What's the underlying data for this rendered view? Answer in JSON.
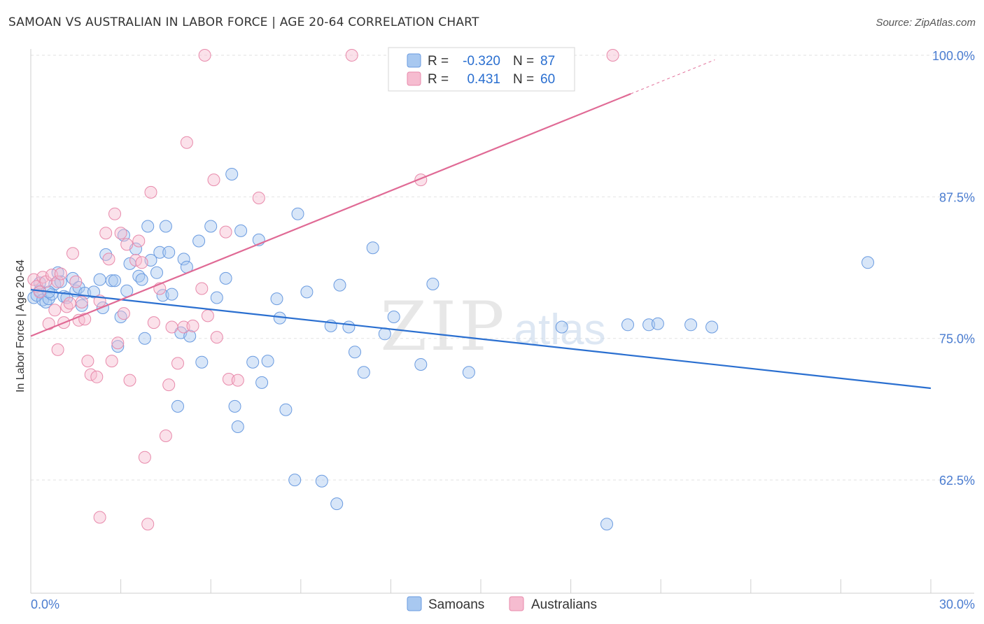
{
  "header": {
    "title": "SAMOAN VS AUSTRALIAN IN LABOR FORCE | AGE 20-64 CORRELATION CHART",
    "source": "Source: ZipAtlas.com"
  },
  "watermark": {
    "zip": "ZIP",
    "atlas": "atlas"
  },
  "colors": {
    "blue_fill": "#a8c8f0",
    "blue_stroke": "#6a9be0",
    "blue_line": "#2a6fd0",
    "pink_fill": "#f6bcd0",
    "pink_stroke": "#e88aab",
    "pink_line": "#e06a95",
    "tick_label_blue": "#4a7cd0",
    "grid": "#e2e2e2"
  },
  "legend_top": {
    "rows": [
      {
        "r_label": "R =",
        "r_value": "-0.320",
        "n_label": "N =",
        "n_value": "87"
      },
      {
        "r_label": "R =",
        "r_value": "0.431",
        "n_label": "N =",
        "n_value": "60"
      }
    ]
  },
  "legend_bottom": {
    "items": [
      "Samoans",
      "Australians"
    ]
  },
  "chart_data": {
    "type": "scatter",
    "title": "SAMOAN VS AUSTRALIAN IN LABOR FORCE | AGE 20-64 CORRELATION CHART",
    "xlabel": "",
    "ylabel": "In Labor Force | Age 20-64",
    "xlim": [
      0,
      30
    ],
    "ylim": [
      52.5,
      100.5
    ],
    "x_tick_labels": [
      "0.0%",
      "30.0%"
    ],
    "y_ticks": [
      62.5,
      75.0,
      87.5,
      100.0
    ],
    "y_tick_labels": [
      "62.5%",
      "75.0%",
      "87.5%",
      "100.0%"
    ],
    "grid": true,
    "legend": "top-center",
    "series": [
      {
        "name": "Samoans",
        "color": "#a8c8f0",
        "stats": {
          "R": -0.32,
          "N": 87
        },
        "trend": {
          "x": [
            0,
            30
          ],
          "y": [
            79.3,
            70.6
          ]
        },
        "points": [
          [
            0.1,
            78.6
          ],
          [
            0.2,
            78.8
          ],
          [
            0.3,
            79.2
          ],
          [
            0.4,
            78.4
          ],
          [
            0.5,
            78.2
          ],
          [
            0.6,
            78.5
          ],
          [
            0.7,
            78.9
          ],
          [
            0.8,
            79.8
          ],
          [
            0.9,
            80.8
          ],
          [
            1.0,
            80.0
          ],
          [
            1.1,
            78.7
          ],
          [
            1.2,
            78.6
          ],
          [
            1.4,
            80.3
          ],
          [
            1.5,
            79.2
          ],
          [
            1.6,
            79.5
          ],
          [
            1.7,
            77.9
          ],
          [
            1.8,
            79.0
          ],
          [
            2.1,
            79.1
          ],
          [
            2.3,
            80.2
          ],
          [
            2.4,
            77.7
          ],
          [
            2.5,
            82.4
          ],
          [
            2.7,
            80.1
          ],
          [
            2.8,
            80.1
          ],
          [
            2.9,
            74.3
          ],
          [
            3.0,
            76.9
          ],
          [
            3.1,
            84.1
          ],
          [
            3.2,
            79.2
          ],
          [
            3.3,
            81.6
          ],
          [
            3.5,
            82.9
          ],
          [
            3.6,
            80.5
          ],
          [
            3.7,
            80.2
          ],
          [
            3.8,
            75.0
          ],
          [
            3.9,
            84.9
          ],
          [
            4.0,
            81.9
          ],
          [
            4.2,
            80.8
          ],
          [
            4.3,
            82.6
          ],
          [
            4.4,
            78.8
          ],
          [
            4.5,
            84.9
          ],
          [
            4.6,
            82.6
          ],
          [
            4.7,
            78.9
          ],
          [
            4.9,
            69.0
          ],
          [
            5.0,
            75.5
          ],
          [
            5.1,
            82.0
          ],
          [
            5.2,
            81.3
          ],
          [
            5.3,
            75.2
          ],
          [
            5.6,
            83.6
          ],
          [
            5.7,
            72.9
          ],
          [
            6.0,
            84.9
          ],
          [
            6.2,
            78.6
          ],
          [
            6.5,
            80.3
          ],
          [
            6.7,
            89.5
          ],
          [
            6.8,
            69.0
          ],
          [
            6.9,
            67.2
          ],
          [
            7.0,
            84.5
          ],
          [
            7.4,
            72.9
          ],
          [
            7.6,
            83.7
          ],
          [
            7.7,
            71.1
          ],
          [
            7.9,
            73.0
          ],
          [
            8.2,
            78.5
          ],
          [
            8.3,
            76.8
          ],
          [
            8.5,
            68.7
          ],
          [
            8.8,
            62.5
          ],
          [
            8.9,
            86.0
          ],
          [
            9.2,
            79.1
          ],
          [
            9.7,
            62.4
          ],
          [
            10.0,
            76.1
          ],
          [
            10.2,
            60.4
          ],
          [
            10.3,
            79.7
          ],
          [
            10.6,
            76.0
          ],
          [
            10.8,
            73.8
          ],
          [
            11.1,
            72.0
          ],
          [
            11.4,
            83.0
          ],
          [
            11.8,
            75.4
          ],
          [
            12.1,
            76.9
          ],
          [
            13.0,
            72.7
          ],
          [
            13.4,
            79.8
          ],
          [
            14.6,
            72.0
          ],
          [
            17.7,
            76.0
          ],
          [
            19.2,
            58.6
          ],
          [
            19.9,
            76.2
          ],
          [
            20.6,
            76.2
          ],
          [
            20.9,
            76.3
          ],
          [
            22.0,
            76.2
          ],
          [
            22.7,
            76.0
          ],
          [
            27.9,
            81.7
          ],
          [
            0.3,
            79.9
          ],
          [
            0.6,
            79.1
          ]
        ]
      },
      {
        "name": "Australians",
        "color": "#f6bcd0",
        "stats": {
          "R": 0.431,
          "N": 60
        },
        "trend": {
          "x": [
            0,
            20
          ],
          "y": [
            75.2,
            96.6
          ]
        },
        "points": [
          [
            0.1,
            80.2
          ],
          [
            0.2,
            79.6
          ],
          [
            0.3,
            79.1
          ],
          [
            0.4,
            80.4
          ],
          [
            0.5,
            80.0
          ],
          [
            0.6,
            76.3
          ],
          [
            0.7,
            80.6
          ],
          [
            0.8,
            77.5
          ],
          [
            0.9,
            80.0
          ],
          [
            1.0,
            80.7
          ],
          [
            1.1,
            76.4
          ],
          [
            1.2,
            77.8
          ],
          [
            1.3,
            78.1
          ],
          [
            1.4,
            82.5
          ],
          [
            1.5,
            80.0
          ],
          [
            1.6,
            76.6
          ],
          [
            1.7,
            78.2
          ],
          [
            1.9,
            73.0
          ],
          [
            2.0,
            71.8
          ],
          [
            2.2,
            71.6
          ],
          [
            2.3,
            78.3
          ],
          [
            2.5,
            84.3
          ],
          [
            2.6,
            82.0
          ],
          [
            2.7,
            73.0
          ],
          [
            2.8,
            86.0
          ],
          [
            2.9,
            74.6
          ],
          [
            3.1,
            77.2
          ],
          [
            3.2,
            83.3
          ],
          [
            3.3,
            71.3
          ],
          [
            3.5,
            81.9
          ],
          [
            3.6,
            83.6
          ],
          [
            3.7,
            81.7
          ],
          [
            3.8,
            64.5
          ],
          [
            3.9,
            58.6
          ],
          [
            4.0,
            87.9
          ],
          [
            4.1,
            76.4
          ],
          [
            4.3,
            79.4
          ],
          [
            4.5,
            66.4
          ],
          [
            4.6,
            70.9
          ],
          [
            4.7,
            76.0
          ],
          [
            4.9,
            72.8
          ],
          [
            5.1,
            76.0
          ],
          [
            5.2,
            92.3
          ],
          [
            5.4,
            76.1
          ],
          [
            5.7,
            79.4
          ],
          [
            5.9,
            77.0
          ],
          [
            6.1,
            89.0
          ],
          [
            6.2,
            75.1
          ],
          [
            6.5,
            84.4
          ],
          [
            6.6,
            71.4
          ],
          [
            6.9,
            71.3
          ],
          [
            7.6,
            87.4
          ],
          [
            10.7,
            100.0
          ],
          [
            13.0,
            89.0
          ],
          [
            19.4,
            100.0
          ],
          [
            2.3,
            59.2
          ],
          [
            3.0,
            84.3
          ],
          [
            5.8,
            100.0
          ],
          [
            0.9,
            74.0
          ],
          [
            1.8,
            76.7
          ]
        ]
      }
    ]
  }
}
